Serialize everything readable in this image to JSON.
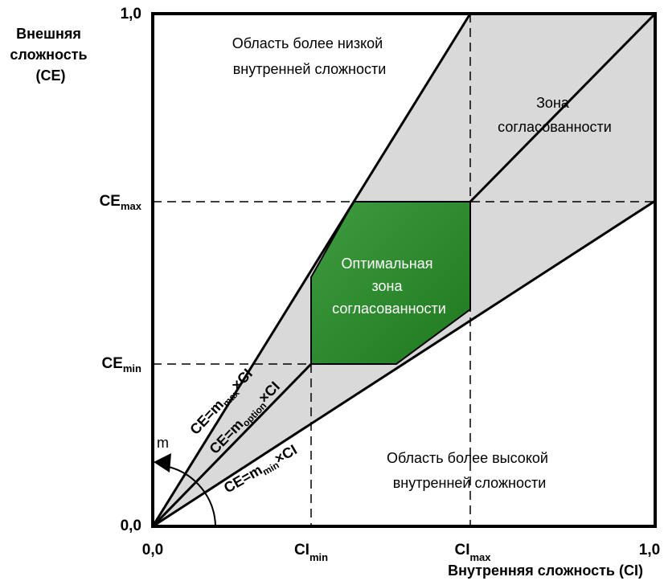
{
  "axes": {
    "y_title": [
      "Внешняя",
      "сложность",
      "(CE)"
    ],
    "x_title": "Внутренняя сложность (CI)",
    "origin_y": "0,0",
    "origin_x": "0,0",
    "y_top": "1,0",
    "x_right": "1,0",
    "ce_max": {
      "main": "CE",
      "sub": "max"
    },
    "ce_min": {
      "main": "CE",
      "sub": "min"
    },
    "ci_min": {
      "main": "CI",
      "sub": "min"
    },
    "ci_max": {
      "main": "CI",
      "sub": "max"
    }
  },
  "regions": {
    "lower_internal": [
      "Область более низкой",
      "внутренней сложности"
    ],
    "higher_internal": [
      "Область более высокой",
      "внутренней сложности"
    ],
    "zone": [
      "Зона",
      "согласованности"
    ],
    "optimal": [
      "Оптимальная",
      "зона",
      "согласованности"
    ]
  },
  "equations": {
    "max": {
      "pre": "CE=m",
      "sub": "max",
      "post": "×CI"
    },
    "option": {
      "pre": "CE=m",
      "sub": "option",
      "post": "×CI"
    },
    "min": {
      "pre": "CE=m",
      "sub": "min",
      "post": "×CI"
    }
  },
  "angle_label": "m",
  "colors": {
    "zone_fill": "#d9d9d9",
    "optimal_fill": "#2e8b2e",
    "frame": "#000000"
  }
}
